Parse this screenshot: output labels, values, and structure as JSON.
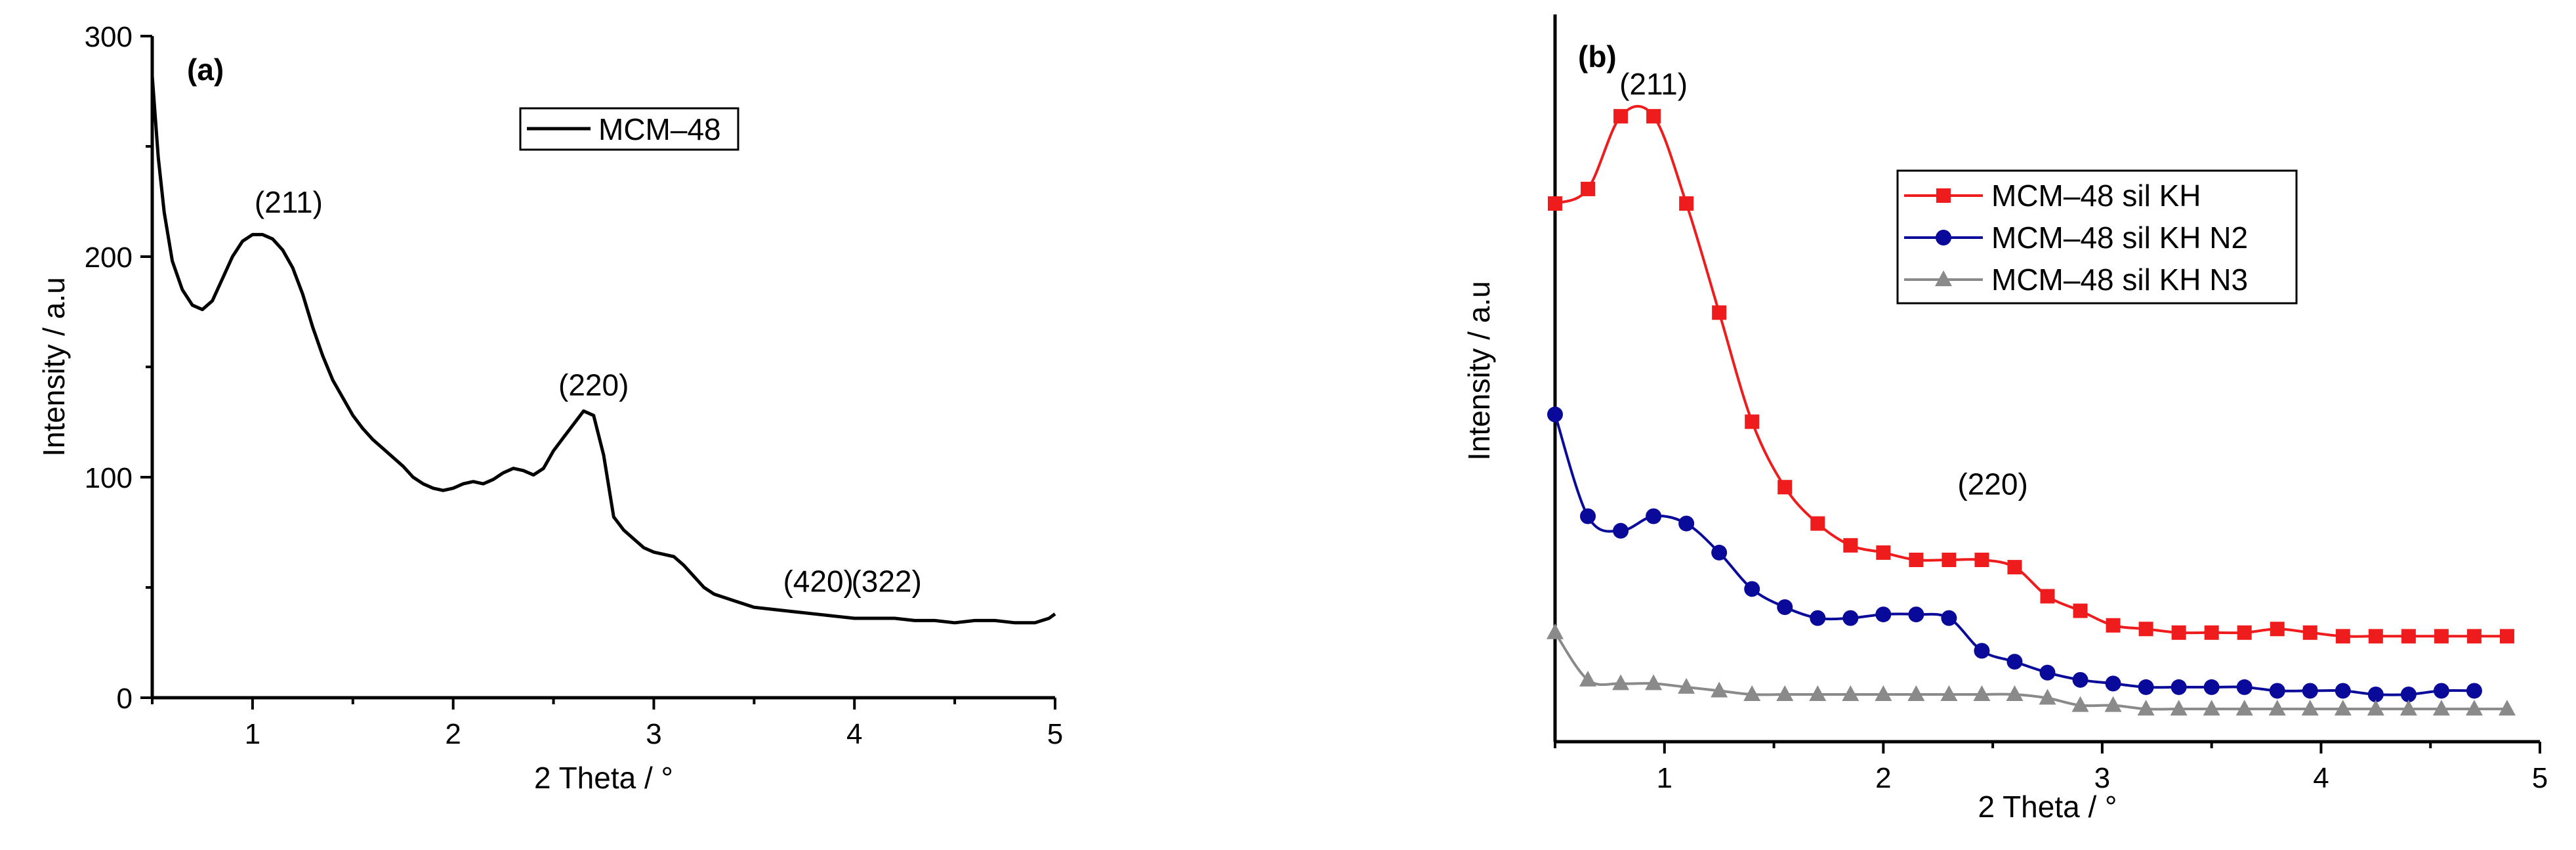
{
  "chart_data": [
    {
      "panel": "(a)",
      "type": "line",
      "xlabel": "2 Theta / °",
      "ylabel": "Intensity / a.u",
      "xlim": [
        0.5,
        5
      ],
      "ylim": [
        0,
        300
      ],
      "xticks": [
        "1",
        "2",
        "3",
        "4",
        "5"
      ],
      "yticks": [
        "0",
        "100",
        "200",
        "300"
      ],
      "legend": [
        "MCM–48"
      ],
      "annotations": [
        {
          "text": "(211)",
          "x": 1.18,
          "y": 220
        },
        {
          "text": "(220)",
          "x": 2.7,
          "y": 137
        },
        {
          "text": "(420)",
          "x": 3.82,
          "y": 48
        },
        {
          "text": "(322)",
          "x": 4.16,
          "y": 48
        }
      ],
      "series": [
        {
          "name": "MCM–48",
          "color": "#000000",
          "x": [
            0.5,
            0.53,
            0.56,
            0.6,
            0.65,
            0.7,
            0.75,
            0.8,
            0.85,
            0.9,
            0.95,
            1.0,
            1.05,
            1.1,
            1.15,
            1.2,
            1.25,
            1.3,
            1.35,
            1.4,
            1.45,
            1.5,
            1.55,
            1.6,
            1.65,
            1.7,
            1.75,
            1.8,
            1.85,
            1.9,
            1.95,
            2.0,
            2.05,
            2.1,
            2.15,
            2.2,
            2.25,
            2.3,
            2.35,
            2.4,
            2.45,
            2.5,
            2.55,
            2.6,
            2.65,
            2.7,
            2.75,
            2.8,
            2.85,
            2.9,
            2.95,
            3.0,
            3.05,
            3.1,
            3.15,
            3.2,
            3.25,
            3.3,
            3.4,
            3.5,
            3.6,
            3.7,
            3.8,
            3.9,
            4.0,
            4.1,
            4.2,
            4.3,
            4.4,
            4.5,
            4.6,
            4.7,
            4.8,
            4.9,
            4.97,
            5.0
          ],
          "y": [
            282,
            245,
            220,
            198,
            185,
            178,
            176,
            180,
            190,
            200,
            207,
            210,
            210,
            208,
            203,
            195,
            183,
            168,
            155,
            144,
            136,
            128,
            122,
            117,
            113,
            109,
            105,
            100,
            97,
            95,
            94,
            95,
            97,
            98,
            97,
            99,
            102,
            104,
            103,
            101,
            104,
            112,
            118,
            124,
            130,
            128,
            110,
            82,
            76,
            72,
            68,
            66,
            65,
            64,
            60,
            55,
            50,
            47,
            44,
            41,
            40,
            39,
            38,
            37,
            36,
            36,
            36,
            35,
            35,
            34,
            35,
            35,
            34,
            34,
            36,
            38
          ]
        }
      ]
    },
    {
      "panel": "(b)",
      "type": "line",
      "xlabel": "2 Theta / °",
      "ylabel": "Intensity / a.u",
      "xlim": [
        0.5,
        5
      ],
      "ylim": [
        0,
        100
      ],
      "xticks": [
        "1",
        "2",
        "3",
        "4",
        "5"
      ],
      "yticks": [],
      "annotations": [
        {
          "text": "(211)",
          "x": 0.95,
          "y": 89
        },
        {
          "text": "(220)",
          "x": 2.5,
          "y": 34
        }
      ],
      "legend": [
        "MCM–48 sil KH",
        "MCM–48 sil KH N2",
        "MCM–48 sil KH N3"
      ],
      "series": [
        {
          "name": "MCM–48 sil KH",
          "color": "#ee1c1c",
          "marker": "square",
          "x": [
            0.5,
            0.65,
            0.8,
            0.95,
            1.1,
            1.25,
            1.4,
            1.55,
            1.7,
            1.85,
            2.0,
            2.15,
            2.3,
            2.45,
            2.6,
            2.75,
            2.9,
            3.05,
            3.2,
            3.35,
            3.5,
            3.65,
            3.8,
            3.95,
            4.1,
            4.25,
            4.4,
            4.55,
            4.7,
            4.85
          ],
          "y": [
            74,
            76,
            86,
            86,
            74,
            59,
            44,
            35,
            30,
            27,
            26,
            25,
            25,
            25,
            24,
            20,
            18,
            16,
            15.5,
            15,
            15,
            15,
            15.5,
            15,
            14.5,
            14.5,
            14.5,
            14.5,
            14.5,
            14.5
          ]
        },
        {
          "name": "MCM–48 sil KH N2",
          "color": "#0a0a9a",
          "marker": "circle",
          "x": [
            0.5,
            0.65,
            0.8,
            0.95,
            1.1,
            1.25,
            1.4,
            1.55,
            1.7,
            1.85,
            2.0,
            2.15,
            2.3,
            2.45,
            2.6,
            2.75,
            2.9,
            3.05,
            3.2,
            3.35,
            3.5,
            3.65,
            3.8,
            3.95,
            4.1,
            4.25,
            4.4,
            4.55,
            4.7
          ],
          "y": [
            45,
            31,
            29,
            31,
            30,
            26,
            21,
            18.5,
            17,
            17,
            17.5,
            17.5,
            17,
            12.5,
            11,
            9.5,
            8.5,
            8,
            7.5,
            7.5,
            7.5,
            7.5,
            7,
            7,
            7,
            6.5,
            6.5,
            7,
            7
          ]
        },
        {
          "name": "MCM–48 sil KH N3",
          "color": "#8a8a8a",
          "marker": "triangle",
          "x": [
            0.5,
            0.65,
            0.8,
            0.95,
            1.1,
            1.25,
            1.4,
            1.55,
            1.7,
            1.85,
            2.0,
            2.15,
            2.3,
            2.45,
            2.6,
            2.75,
            2.9,
            3.05,
            3.2,
            3.35,
            3.5,
            3.65,
            3.8,
            3.95,
            4.1,
            4.25,
            4.4,
            4.55,
            4.7,
            4.85
          ],
          "y": [
            15,
            8.5,
            8,
            8,
            7.5,
            7,
            6.5,
            6.5,
            6.5,
            6.5,
            6.5,
            6.5,
            6.5,
            6.5,
            6.5,
            6,
            5,
            5,
            4.5,
            4.5,
            4.5,
            4.5,
            4.5,
            4.5,
            4.5,
            4.5,
            4.5,
            4.5,
            4.5,
            4.5
          ]
        }
      ]
    }
  ]
}
